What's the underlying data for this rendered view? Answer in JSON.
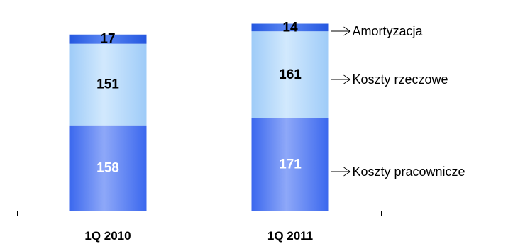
{
  "chart_data": {
    "type": "bar",
    "stacked": true,
    "categories": [
      "1Q 2010",
      "1Q 2011"
    ],
    "series": [
      {
        "name": "Koszty pracownicze",
        "values": [
          158,
          171
        ],
        "color": "#3F6FF0",
        "label_color": "#ffffff"
      },
      {
        "name": "Koszty rzeczowe",
        "values": [
          151,
          161
        ],
        "color": "#A9D3FA",
        "label_color": "#000000"
      },
      {
        "name": "Amortyzacja",
        "values": [
          17,
          14
        ],
        "color": "#2B63E6",
        "label_color": "#000000"
      }
    ],
    "ylim": [
      0,
      350
    ],
    "grid": false,
    "legend_position": "right"
  }
}
